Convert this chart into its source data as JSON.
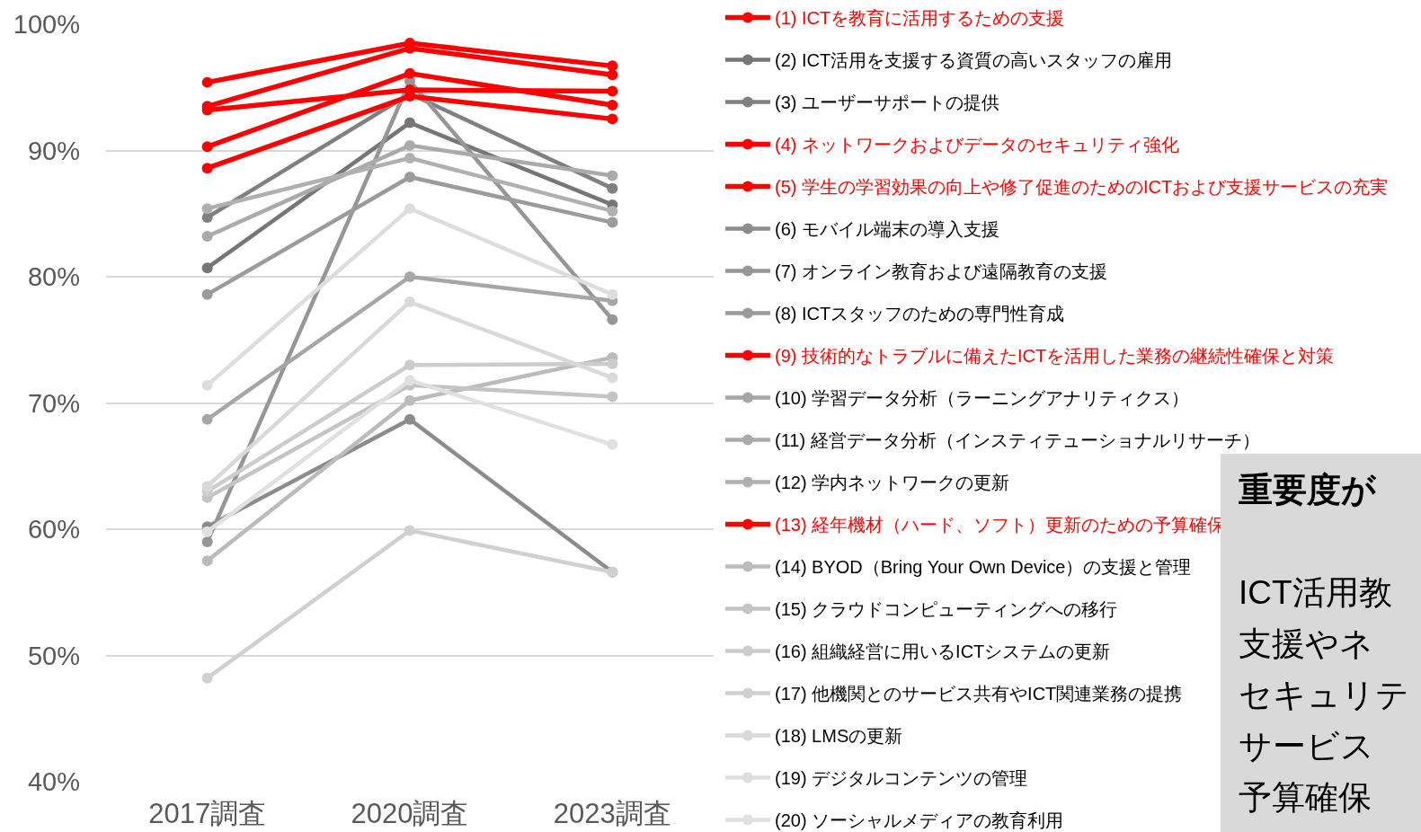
{
  "chart_data": {
    "type": "line",
    "categories": [
      "2017調査",
      "2020調査",
      "2023調査"
    ],
    "ylim": [
      40,
      100
    ],
    "yticks": [
      {
        "value": 40,
        "label": "40%"
      },
      {
        "value": 50,
        "label": "50%"
      },
      {
        "value": 60,
        "label": "60%"
      },
      {
        "value": 70,
        "label": "70%"
      },
      {
        "value": 80,
        "label": "80%"
      },
      {
        "value": 90,
        "label": "90%"
      },
      {
        "value": 100,
        "label": "100%"
      }
    ],
    "grid": "y",
    "legend": "right",
    "marker": "circle",
    "line_style": "solid",
    "annotations": [
      "重要度が",
      "ICT活用教",
      "支援やネ",
      "セキュリテ",
      "サービス",
      "予算確保"
    ],
    "series": [
      {
        "name": "(1) ICTを教育に活用するための支援",
        "color": "#ff0000",
        "values": [
          95.4,
          98.5,
          96.7
        ]
      },
      {
        "name": "(2) ICT活用を支援する資質の高いスタッフの雇用",
        "color": "#767676",
        "values": [
          80.7,
          92.2,
          85.7
        ]
      },
      {
        "name": "(3) ユーザーサポートの提供",
        "color": "#808080",
        "values": [
          84.7,
          94.5,
          87.0
        ]
      },
      {
        "name": "(4) ネットワークおよびデータのセキュリティ強化",
        "color": "#ff0000",
        "values": [
          93.5,
          98.1,
          96.0
        ]
      },
      {
        "name": "(5) 学生の学習効果の向上や修了促進のためのICTおよび支援サービスの充実",
        "color": "#ff0000",
        "values": [
          90.3,
          96.1,
          93.6
        ]
      },
      {
        "name": "(6) モバイル端末の導入支援",
        "color": "#8c8c8c",
        "values": [
          60.2,
          68.7,
          56.6
        ]
      },
      {
        "name": "(7) オンライン教育および遠隔教育の支援",
        "color": "#969696",
        "values": [
          59.0,
          95.5,
          76.6
        ]
      },
      {
        "name": "(8) ICTスタッフのための専門性育成",
        "color": "#9b9b9b",
        "values": [
          78.6,
          87.9,
          84.3
        ]
      },
      {
        "name": "(9) 技術的なトラブルに備えたICTを活用した業務の継続性確保と対策",
        "color": "#ff0000",
        "values": [
          88.6,
          94.3,
          92.5
        ]
      },
      {
        "name": "(10) 学習データ分析（ラーニングアナリティクス）",
        "color": "#a6a6a6",
        "values": [
          68.7,
          80.0,
          78.1
        ]
      },
      {
        "name": "(11) 経営データ分析（インスティテューショナルリサーチ）",
        "color": "#aaaaaa",
        "values": [
          83.2,
          90.4,
          88.0
        ]
      },
      {
        "name": "(12) 学内ネットワークの更新",
        "color": "#b0b0b0",
        "values": [
          85.4,
          89.4,
          85.2
        ]
      },
      {
        "name": "(13) 経年機材（ハード、ソフト）更新のための予算確保",
        "color": "#ff0000",
        "values": [
          93.2,
          94.8,
          94.7
        ]
      },
      {
        "name": "(14) BYOD（Bring Your Own Device）の支援と管理",
        "color": "#bbbbbb",
        "values": [
          57.5,
          70.2,
          73.6
        ]
      },
      {
        "name": "(15) クラウドコンピューティングへの移行",
        "color": "#c4c4c4",
        "values": [
          62.5,
          71.4,
          70.5
        ]
      },
      {
        "name": "(16) 組織経営に用いるICTシステムの更新",
        "color": "#cccccc",
        "values": [
          63.0,
          73.0,
          73.1
        ]
      },
      {
        "name": "(17) 他機関とのサービス共有やICT関連業務の提携",
        "color": "#d0d0d0",
        "values": [
          48.2,
          59.9,
          56.6
        ]
      },
      {
        "name": "(18) LMSの更新",
        "color": "#d9d9d9",
        "values": [
          63.4,
          78.0,
          72.0
        ]
      },
      {
        "name": "(19) デジタルコンテンツの管理",
        "color": "#dddddd",
        "values": [
          71.4,
          85.4,
          78.6
        ]
      },
      {
        "name": "(20) ソーシャルメディアの教育利用",
        "color": "#e0e0e0",
        "values": [
          59.8,
          71.8,
          66.7
        ]
      }
    ]
  }
}
